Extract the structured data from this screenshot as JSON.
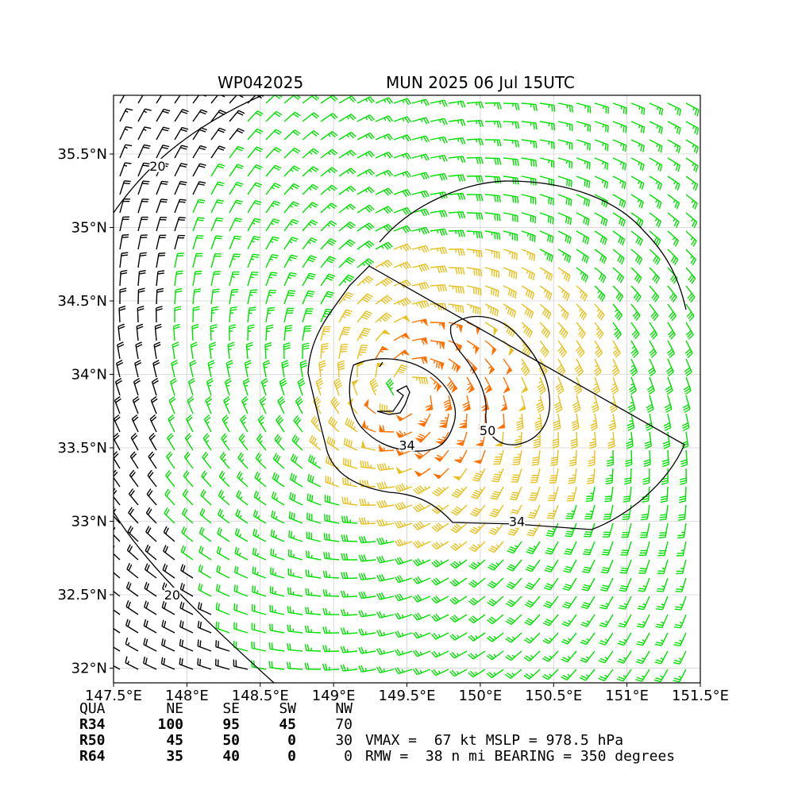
{
  "title_left": "WP042025",
  "title_right": "MUN 2025 06 Jul 15UTC",
  "chart_data": {
    "type": "wind_barb_map",
    "xlim": [
      147.5,
      151.5
    ],
    "ylim": [
      31.9,
      35.9
    ],
    "xticks": [
      {
        "value": 147.5,
        "label": "147.5°E"
      },
      {
        "value": 148.0,
        "label": "148°E"
      },
      {
        "value": 148.5,
        "label": "148.5°E"
      },
      {
        "value": 149.0,
        "label": "149°E"
      },
      {
        "value": 149.5,
        "label": "149.5°E"
      },
      {
        "value": 150.0,
        "label": "150°E"
      },
      {
        "value": 150.5,
        "label": "150.5°E"
      },
      {
        "value": 151.0,
        "label": "151°E"
      },
      {
        "value": 151.5,
        "label": "151.5°E"
      }
    ],
    "yticks": [
      {
        "value": 32.0,
        "label": "32°N"
      },
      {
        "value": 32.5,
        "label": "32.5°N"
      },
      {
        "value": 33.0,
        "label": "33°N"
      },
      {
        "value": 33.5,
        "label": "33.5°N"
      },
      {
        "value": 34.0,
        "label": "34°N"
      },
      {
        "value": 34.5,
        "label": "34.5°N"
      },
      {
        "value": 35.0,
        "label": "35°N"
      },
      {
        "value": 35.5,
        "label": "35.5°N"
      }
    ],
    "grid": true,
    "storm_center": {
      "lon": 149.5,
      "lat": 33.88
    },
    "vmax_kt": 67,
    "rmw_nmi": 38,
    "contour_levels": [
      {
        "value": 20,
        "label": "20"
      },
      {
        "value": 34,
        "label": "34"
      },
      {
        "value": 50,
        "label": "50"
      }
    ],
    "contour_labels": [
      {
        "text": "20",
        "lon": 147.8,
        "lat": 35.42
      },
      {
        "text": "20",
        "lon": 147.9,
        "lat": 32.5
      },
      {
        "text": "34",
        "lon": 149.5,
        "lat": 33.52
      },
      {
        "text": "34",
        "lon": 150.25,
        "lat": 33.0
      },
      {
        "text": "50",
        "lon": 150.05,
        "lat": 33.62
      }
    ],
    "color_classes": [
      {
        "range": "< 20 kt",
        "color": "#000000"
      },
      {
        "range": "20-34 kt",
        "color": "#00e000"
      },
      {
        "range": "34-50 kt",
        "color": "#e8c020"
      },
      {
        "range": "50-64 kt",
        "color": "#ff7000"
      }
    ]
  },
  "wind_radii": {
    "header": [
      "QUA",
      "NE",
      "SE",
      "SW",
      "NW"
    ],
    "rows": [
      {
        "label": "R34",
        "values": [
          "100",
          "95",
          "45",
          "70"
        ]
      },
      {
        "label": "R50",
        "values": [
          "45",
          "50",
          "0",
          "30"
        ]
      },
      {
        "label": "R64",
        "values": [
          "35",
          "40",
          "0",
          "0"
        ]
      }
    ]
  },
  "summary": {
    "line1": "VMAX =  67 kt MSLP = 978.5 hPa",
    "line2": "RMW =  38 n mi BEARING = 350 degrees"
  }
}
